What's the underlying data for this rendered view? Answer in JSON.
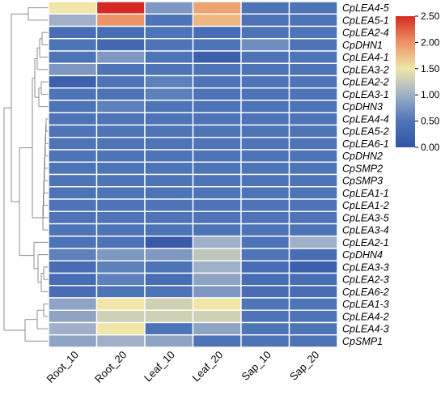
{
  "chart_data": {
    "type": "heatmap",
    "columns": [
      "Root_10",
      "Root_20",
      "Leaf_10",
      "Leaf_20",
      "Sap_10",
      "Sap_20"
    ],
    "rows": [
      "CpLEA4-5",
      "CpLEA5-1",
      "CpLEA2-4",
      "CpDHN1",
      "CpLEA4-1",
      "CpLEA3-2",
      "CpLEA2-2",
      "CpLEA3-1",
      "CpDHN3",
      "CpLEA4-4",
      "CpLEA5-2",
      "CpLEA6-1",
      "CpDHN2",
      "CpSMP2",
      "CpSMP3",
      "CpLEA1-1",
      "CpLEA1-2",
      "CpLEA3-5",
      "CpLEA3-4",
      "CpLEA2-1",
      "CpDHN4",
      "CpLEA3-3",
      "CpLEA2-3",
      "CpLEA6-2",
      "CpLEA1-3",
      "CpLEA4-2",
      "CpLEA4-3",
      "CpSMP1"
    ],
    "values": [
      [
        1.5,
        2.5,
        0.8,
        1.9,
        0.5,
        0.5
      ],
      [
        1.0,
        2.0,
        0.5,
        1.8,
        0.5,
        0.5
      ],
      [
        0.4,
        0.4,
        0.5,
        0.4,
        0.5,
        0.5
      ],
      [
        0.5,
        0.3,
        0.5,
        0.5,
        0.7,
        0.5
      ],
      [
        0.5,
        0.8,
        0.5,
        0.2,
        0.5,
        0.5
      ],
      [
        0.8,
        0.5,
        0.5,
        0.5,
        0.5,
        0.5
      ],
      [
        0.2,
        0.5,
        0.6,
        0.5,
        0.5,
        0.5
      ],
      [
        0.5,
        0.5,
        0.6,
        0.5,
        0.5,
        0.5
      ],
      [
        0.5,
        0.6,
        0.5,
        0.5,
        0.5,
        0.5
      ],
      [
        0.5,
        0.5,
        0.5,
        0.5,
        0.5,
        0.5
      ],
      [
        0.5,
        0.5,
        0.5,
        0.5,
        0.5,
        0.5
      ],
      [
        0.5,
        0.5,
        0.5,
        0.5,
        0.5,
        0.5
      ],
      [
        0.5,
        0.5,
        0.5,
        0.5,
        0.5,
        0.5
      ],
      [
        0.5,
        0.5,
        0.5,
        0.5,
        0.5,
        0.5
      ],
      [
        0.5,
        0.5,
        0.5,
        0.5,
        0.5,
        0.5
      ],
      [
        0.5,
        0.5,
        0.5,
        0.5,
        0.5,
        0.5
      ],
      [
        0.5,
        0.5,
        0.5,
        0.5,
        0.5,
        0.5
      ],
      [
        0.5,
        0.5,
        0.5,
        0.5,
        0.5,
        0.5
      ],
      [
        0.5,
        0.5,
        0.5,
        0.5,
        0.5,
        0.5
      ],
      [
        0.5,
        0.5,
        0.1,
        1.0,
        0.5,
        1.0
      ],
      [
        0.6,
        0.8,
        0.8,
        1.2,
        0.5,
        0.4
      ],
      [
        0.4,
        0.6,
        0.5,
        1.0,
        0.4,
        0.2
      ],
      [
        0.4,
        0.6,
        0.4,
        0.9,
        0.4,
        0.4
      ],
      [
        0.4,
        0.5,
        0.5,
        0.8,
        0.4,
        0.4
      ],
      [
        0.9,
        1.5,
        1.3,
        1.5,
        0.5,
        0.5
      ],
      [
        0.9,
        1.3,
        1.3,
        1.3,
        0.5,
        0.5
      ],
      [
        1.0,
        1.5,
        0.5,
        0.9,
        0.5,
        0.5
      ],
      [
        0.9,
        1.0,
        0.9,
        0.5,
        0.5,
        0.5
      ]
    ],
    "zlim": [
      0,
      2.5
    ],
    "colorbar_ticks": [
      "0.00",
      "0.50",
      "1.00",
      "1.50",
      "2.00",
      "2.50"
    ],
    "colormap": [
      "#3253a5",
      "#4e74b8",
      "#9fb0c8",
      "#efe6a8",
      "#ec9466",
      "#d42a21"
    ],
    "legend_position": "top-right",
    "dendrogram": "rows",
    "grid": true
  }
}
